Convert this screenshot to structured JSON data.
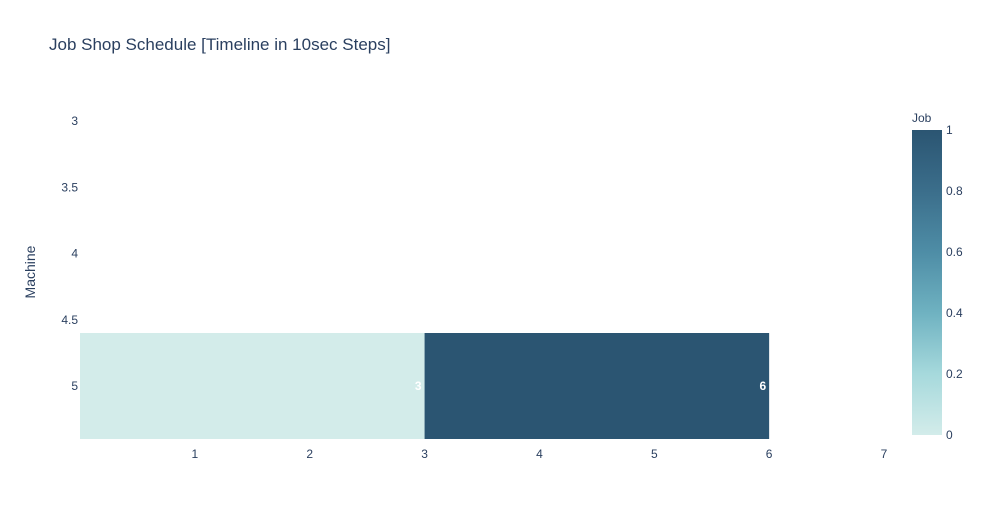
{
  "chart_data": {
    "type": "bar",
    "orientation": "horizontal",
    "title": "Job Shop Schedule [Timeline in 10sec Steps]",
    "xlabel": "",
    "ylabel": "Machine",
    "xlim": [
      0,
      7.3
    ],
    "ylim": [
      5.5,
      2.85
    ],
    "xticks": [
      1,
      2,
      3,
      4,
      5,
      6,
      7
    ],
    "yticks": [
      3,
      3.5,
      4,
      4.5,
      5
    ],
    "grid": false,
    "bars": [
      {
        "machine": 5,
        "start": 0,
        "end": 3,
        "job": 0,
        "label": "3"
      },
      {
        "machine": 5,
        "start": 3,
        "end": 6,
        "job": 1,
        "label": "6"
      }
    ],
    "colorbar": {
      "title": "Job",
      "range": [
        0,
        1
      ],
      "ticks": [
        "0",
        "0.2",
        "0.4",
        "0.6",
        "0.8",
        "1"
      ],
      "colors": [
        "#d3ecea",
        "#a6d9dc",
        "#6fb2c1",
        "#4e8da6",
        "#3b6e8b",
        "#2b5572"
      ]
    }
  }
}
